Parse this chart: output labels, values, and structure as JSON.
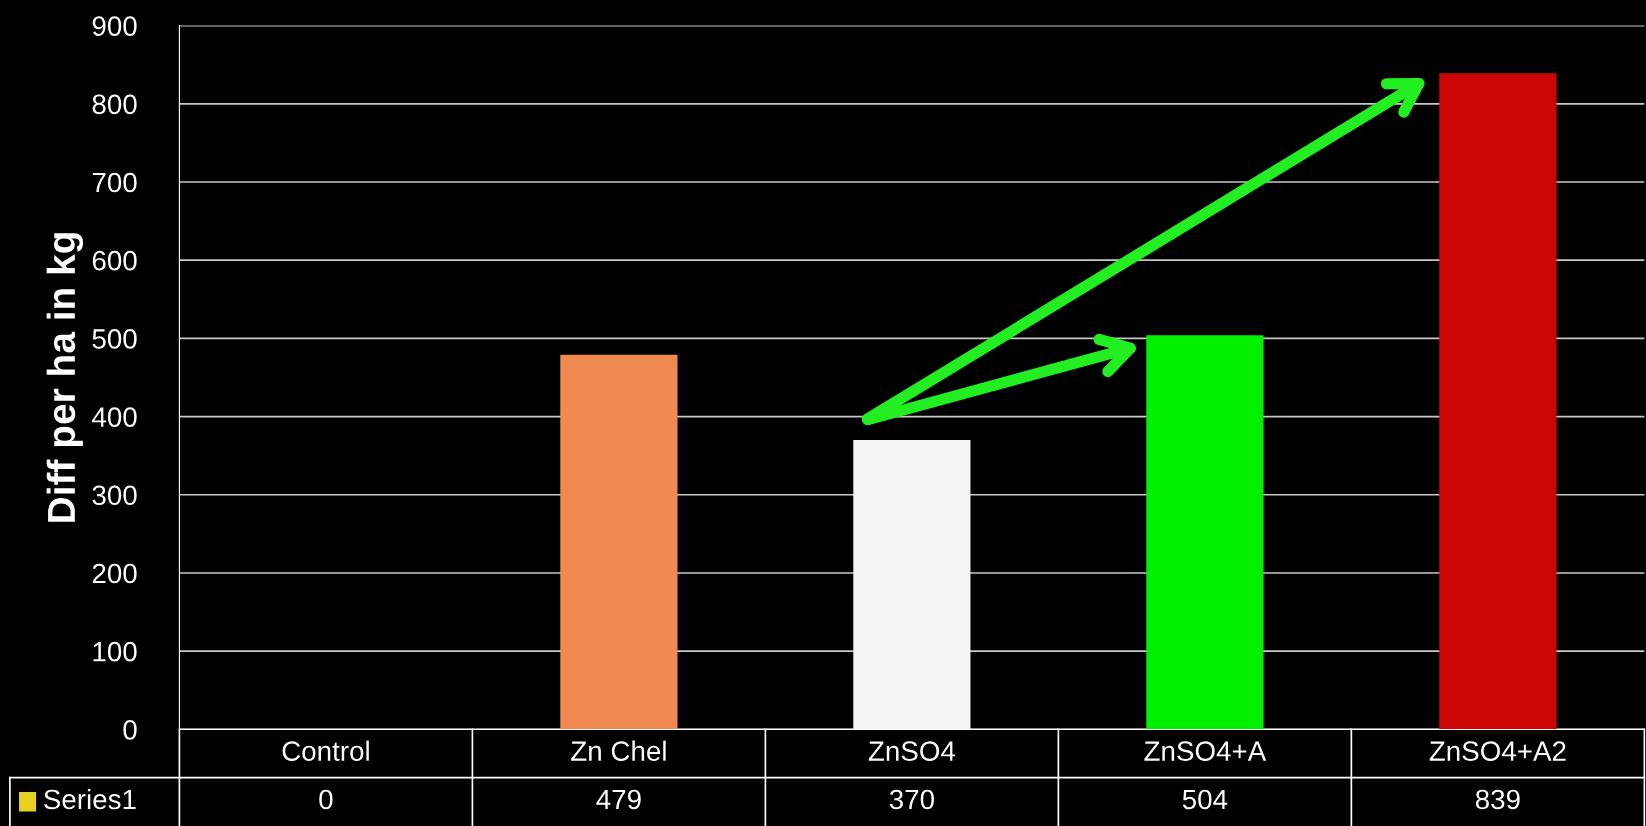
{
  "chart_data": {
    "type": "bar",
    "ylabel": "Diff per ha in kg",
    "categories": [
      "Control",
      "Zn Chel",
      "ZnSO4",
      "ZnSO4+A",
      "ZnSO4+A2"
    ],
    "series": [
      {
        "name": "Series1",
        "color": "#e6d21e",
        "colors": [
          "#ff8c50",
          "#f08a50",
          "#f4f4f4",
          "#00f000",
          "#cc0606"
        ],
        "values": [
          0,
          479,
          370,
          504,
          839
        ]
      }
    ],
    "ylim": [
      0,
      900
    ],
    "yticks": [
      0,
      100,
      200,
      300,
      400,
      500,
      600,
      700,
      800,
      900
    ],
    "grid": "y",
    "data_labels": true,
    "legend": false
  }
}
